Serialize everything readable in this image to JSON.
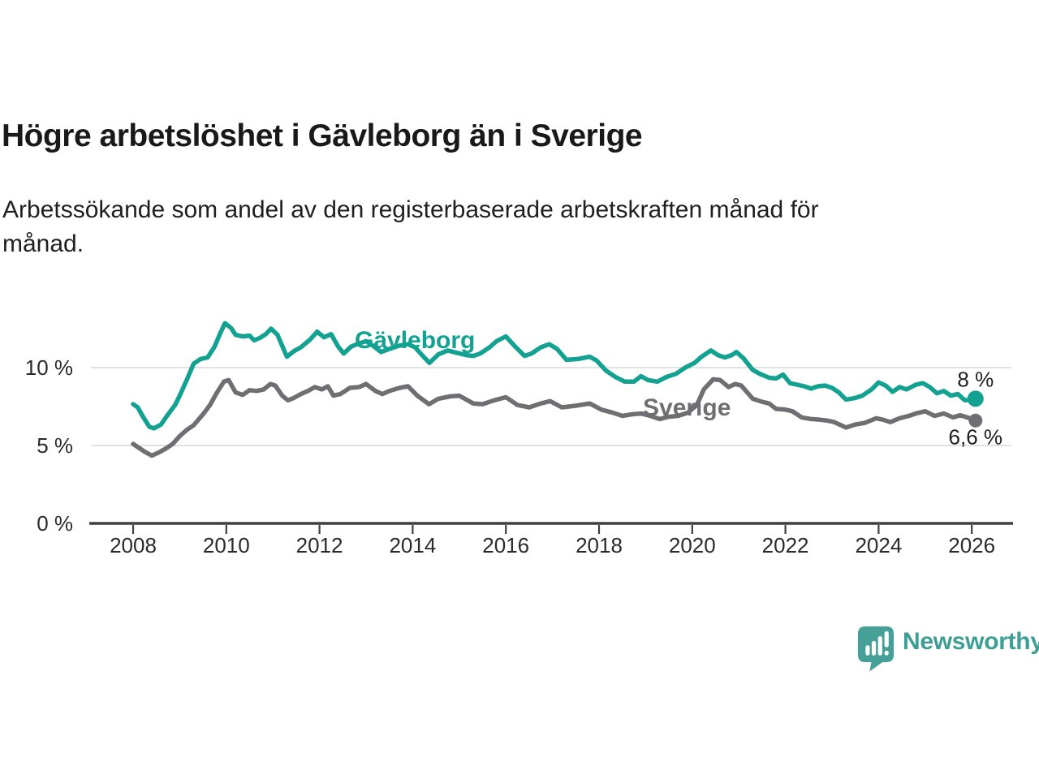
{
  "header": {
    "title": "Högre arbetslöshet i Gävleborg än i Sverige",
    "subtitle": "Arbetssökande som andel av den registerbaserade arbetskraften månad för\nmånad."
  },
  "footer": {
    "brand": "Newsworthy",
    "brand_color": "#3E9E94",
    "bubble_color": "#46A097"
  },
  "chart_data": {
    "type": "line",
    "unit": "%",
    "grid": "horizontal",
    "grid_color": "#D8D8D8",
    "axis_color": "#3F3F3F",
    "text_color": "#2A2A2A",
    "value_label_color": "#1F1F1F",
    "xlim": [
      2008,
      2026.3
    ],
    "ylim": [
      0,
      13.8
    ],
    "x_axis": {
      "ticks": [
        2008,
        2010,
        2012,
        2014,
        2016,
        2018,
        2020,
        2022,
        2024,
        2026
      ]
    },
    "y_axis": {
      "ticks": [
        {
          "value": 0,
          "label": "0 %"
        },
        {
          "value": 5,
          "label": "5 %"
        },
        {
          "value": 10,
          "label": "10 %"
        }
      ]
    },
    "series": [
      {
        "id": "gavleborg",
        "name": "Gävleborg",
        "color": "#13A191",
        "end_label": "8 %",
        "end_value": 8.0,
        "points": [
          [
            2008.0,
            7.65
          ],
          [
            2008.1,
            7.45
          ],
          [
            2008.2,
            6.9
          ],
          [
            2008.35,
            6.2
          ],
          [
            2008.45,
            6.1
          ],
          [
            2008.6,
            6.35
          ],
          [
            2008.75,
            7.0
          ],
          [
            2008.9,
            7.6
          ],
          [
            2009.0,
            8.2
          ],
          [
            2009.15,
            9.2
          ],
          [
            2009.3,
            10.25
          ],
          [
            2009.45,
            10.55
          ],
          [
            2009.6,
            10.65
          ],
          [
            2009.75,
            11.35
          ],
          [
            2009.87,
            12.2
          ],
          [
            2009.97,
            12.85
          ],
          [
            2010.1,
            12.55
          ],
          [
            2010.2,
            12.1
          ],
          [
            2010.35,
            12.0
          ],
          [
            2010.5,
            12.05
          ],
          [
            2010.6,
            11.75
          ],
          [
            2010.72,
            11.9
          ],
          [
            2010.85,
            12.15
          ],
          [
            2010.96,
            12.5
          ],
          [
            2011.1,
            12.1
          ],
          [
            2011.3,
            10.7
          ],
          [
            2011.45,
            11.05
          ],
          [
            2011.6,
            11.3
          ],
          [
            2011.8,
            11.8
          ],
          [
            2011.95,
            12.3
          ],
          [
            2012.1,
            11.95
          ],
          [
            2012.25,
            12.15
          ],
          [
            2012.4,
            11.35
          ],
          [
            2012.52,
            10.9
          ],
          [
            2012.68,
            11.35
          ],
          [
            2012.85,
            11.55
          ],
          [
            2013.0,
            11.7
          ],
          [
            2013.15,
            11.4
          ],
          [
            2013.32,
            11.0
          ],
          [
            2013.5,
            11.2
          ],
          [
            2013.7,
            11.4
          ],
          [
            2013.9,
            11.5
          ],
          [
            2014.05,
            11.3
          ],
          [
            2014.2,
            10.8
          ],
          [
            2014.36,
            10.3
          ],
          [
            2014.55,
            10.85
          ],
          [
            2014.75,
            11.1
          ],
          [
            2014.95,
            10.95
          ],
          [
            2015.15,
            10.8
          ],
          [
            2015.3,
            10.75
          ],
          [
            2015.45,
            10.9
          ],
          [
            2015.65,
            11.3
          ],
          [
            2015.8,
            11.7
          ],
          [
            2016.0,
            12.0
          ],
          [
            2016.2,
            11.35
          ],
          [
            2016.4,
            10.75
          ],
          [
            2016.55,
            10.9
          ],
          [
            2016.75,
            11.3
          ],
          [
            2016.93,
            11.5
          ],
          [
            2017.1,
            11.2
          ],
          [
            2017.3,
            10.5
          ],
          [
            2017.55,
            10.55
          ],
          [
            2017.8,
            10.7
          ],
          [
            2017.95,
            10.45
          ],
          [
            2018.15,
            9.8
          ],
          [
            2018.35,
            9.4
          ],
          [
            2018.55,
            9.1
          ],
          [
            2018.75,
            9.1
          ],
          [
            2018.9,
            9.45
          ],
          [
            2019.05,
            9.2
          ],
          [
            2019.25,
            9.1
          ],
          [
            2019.45,
            9.4
          ],
          [
            2019.65,
            9.6
          ],
          [
            2019.85,
            10.0
          ],
          [
            2020.05,
            10.3
          ],
          [
            2020.2,
            10.7
          ],
          [
            2020.4,
            11.1
          ],
          [
            2020.55,
            10.8
          ],
          [
            2020.7,
            10.65
          ],
          [
            2020.85,
            10.8
          ],
          [
            2020.95,
            11.0
          ],
          [
            2021.1,
            10.6
          ],
          [
            2021.3,
            9.85
          ],
          [
            2021.45,
            9.6
          ],
          [
            2021.65,
            9.35
          ],
          [
            2021.8,
            9.3
          ],
          [
            2021.95,
            9.55
          ],
          [
            2022.1,
            9.0
          ],
          [
            2022.25,
            8.9
          ],
          [
            2022.4,
            8.8
          ],
          [
            2022.55,
            8.65
          ],
          [
            2022.7,
            8.8
          ],
          [
            2022.85,
            8.85
          ],
          [
            2023.0,
            8.7
          ],
          [
            2023.15,
            8.4
          ],
          [
            2023.3,
            7.95
          ],
          [
            2023.5,
            8.05
          ],
          [
            2023.65,
            8.2
          ],
          [
            2023.85,
            8.6
          ],
          [
            2024.0,
            9.05
          ],
          [
            2024.15,
            8.85
          ],
          [
            2024.3,
            8.45
          ],
          [
            2024.45,
            8.75
          ],
          [
            2024.6,
            8.6
          ],
          [
            2024.8,
            8.9
          ],
          [
            2024.95,
            9.0
          ],
          [
            2025.1,
            8.75
          ],
          [
            2025.25,
            8.35
          ],
          [
            2025.4,
            8.5
          ],
          [
            2025.55,
            8.2
          ],
          [
            2025.7,
            8.3
          ],
          [
            2025.85,
            7.9
          ],
          [
            2026.0,
            7.95
          ],
          [
            2026.08,
            8.0
          ]
        ]
      },
      {
        "id": "sverige",
        "name": "Sverige",
        "color": "#6F6E73",
        "end_label": "6,6 %",
        "end_value": 6.6,
        "points": [
          [
            2008.0,
            5.1
          ],
          [
            2008.1,
            4.9
          ],
          [
            2008.25,
            4.6
          ],
          [
            2008.4,
            4.35
          ],
          [
            2008.55,
            4.55
          ],
          [
            2008.7,
            4.8
          ],
          [
            2008.85,
            5.1
          ],
          [
            2009.0,
            5.6
          ],
          [
            2009.15,
            6.0
          ],
          [
            2009.3,
            6.3
          ],
          [
            2009.5,
            7.0
          ],
          [
            2009.65,
            7.6
          ],
          [
            2009.8,
            8.4
          ],
          [
            2009.95,
            9.1
          ],
          [
            2010.05,
            9.2
          ],
          [
            2010.2,
            8.4
          ],
          [
            2010.35,
            8.25
          ],
          [
            2010.5,
            8.55
          ],
          [
            2010.65,
            8.5
          ],
          [
            2010.8,
            8.6
          ],
          [
            2010.95,
            8.95
          ],
          [
            2011.05,
            8.85
          ],
          [
            2011.2,
            8.2
          ],
          [
            2011.32,
            7.9
          ],
          [
            2011.45,
            8.05
          ],
          [
            2011.6,
            8.3
          ],
          [
            2011.75,
            8.5
          ],
          [
            2011.9,
            8.75
          ],
          [
            2012.05,
            8.6
          ],
          [
            2012.18,
            8.8
          ],
          [
            2012.3,
            8.2
          ],
          [
            2012.45,
            8.3
          ],
          [
            2012.65,
            8.7
          ],
          [
            2012.85,
            8.75
          ],
          [
            2013.0,
            8.95
          ],
          [
            2013.2,
            8.5
          ],
          [
            2013.35,
            8.3
          ],
          [
            2013.5,
            8.5
          ],
          [
            2013.72,
            8.7
          ],
          [
            2013.9,
            8.8
          ],
          [
            2014.1,
            8.2
          ],
          [
            2014.35,
            7.65
          ],
          [
            2014.55,
            8.0
          ],
          [
            2014.8,
            8.15
          ],
          [
            2015.0,
            8.2
          ],
          [
            2015.3,
            7.7
          ],
          [
            2015.5,
            7.65
          ],
          [
            2015.75,
            7.9
          ],
          [
            2016.0,
            8.1
          ],
          [
            2016.25,
            7.6
          ],
          [
            2016.5,
            7.45
          ],
          [
            2016.75,
            7.7
          ],
          [
            2016.95,
            7.85
          ],
          [
            2017.2,
            7.45
          ],
          [
            2017.5,
            7.55
          ],
          [
            2017.8,
            7.7
          ],
          [
            2018.05,
            7.3
          ],
          [
            2018.3,
            7.1
          ],
          [
            2018.5,
            6.9
          ],
          [
            2018.7,
            7.0
          ],
          [
            2018.9,
            7.05
          ],
          [
            2019.1,
            6.9
          ],
          [
            2019.3,
            6.7
          ],
          [
            2019.5,
            6.85
          ],
          [
            2019.7,
            6.9
          ],
          [
            2019.9,
            7.1
          ],
          [
            2020.1,
            7.6
          ],
          [
            2020.25,
            8.6
          ],
          [
            2020.45,
            9.25
          ],
          [
            2020.6,
            9.2
          ],
          [
            2020.78,
            8.75
          ],
          [
            2020.92,
            8.95
          ],
          [
            2021.05,
            8.85
          ],
          [
            2021.3,
            8.0
          ],
          [
            2021.5,
            7.8
          ],
          [
            2021.65,
            7.7
          ],
          [
            2021.8,
            7.35
          ],
          [
            2022.0,
            7.3
          ],
          [
            2022.15,
            7.2
          ],
          [
            2022.35,
            6.8
          ],
          [
            2022.55,
            6.7
          ],
          [
            2022.75,
            6.65
          ],
          [
            2022.9,
            6.6
          ],
          [
            2023.05,
            6.5
          ],
          [
            2023.3,
            6.15
          ],
          [
            2023.5,
            6.35
          ],
          [
            2023.7,
            6.45
          ],
          [
            2023.95,
            6.75
          ],
          [
            2024.1,
            6.65
          ],
          [
            2024.25,
            6.5
          ],
          [
            2024.45,
            6.75
          ],
          [
            2024.65,
            6.9
          ],
          [
            2024.8,
            7.05
          ],
          [
            2025.0,
            7.2
          ],
          [
            2025.2,
            6.9
          ],
          [
            2025.4,
            7.05
          ],
          [
            2025.6,
            6.8
          ],
          [
            2025.75,
            6.95
          ],
          [
            2025.9,
            6.8
          ],
          [
            2026.0,
            6.7
          ],
          [
            2026.08,
            6.6
          ]
        ]
      }
    ]
  }
}
